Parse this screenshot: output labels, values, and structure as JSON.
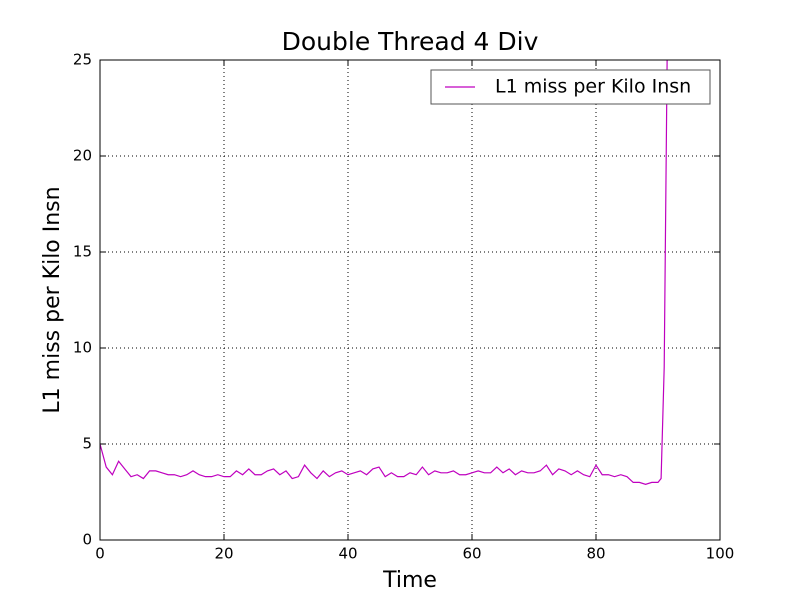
{
  "chart_data": {
    "type": "line",
    "title": "Double Thread 4 Div",
    "xlabel": "Time",
    "ylabel": "L1 miss per Kilo Insn",
    "x": [
      0,
      1,
      2,
      3,
      4,
      5,
      6,
      7,
      8,
      9,
      10,
      11,
      12,
      13,
      14,
      15,
      16,
      17,
      18,
      19,
      20,
      21,
      22,
      23,
      24,
      25,
      26,
      27,
      28,
      29,
      30,
      31,
      32,
      33,
      34,
      35,
      36,
      37,
      38,
      39,
      40,
      41,
      42,
      43,
      44,
      45,
      46,
      47,
      48,
      49,
      50,
      51,
      52,
      53,
      54,
      55,
      56,
      57,
      58,
      59,
      60,
      61,
      62,
      63,
      64,
      65,
      66,
      67,
      68,
      69,
      70,
      71,
      72,
      73,
      74,
      75,
      76,
      77,
      78,
      79,
      80,
      81,
      82,
      83,
      84,
      85,
      86,
      87,
      88,
      89,
      90,
      90.5,
      91,
      91.5
    ],
    "series": [
      {
        "name": "L1 miss per Kilo Insn",
        "color": "#bf00bf",
        "values": [
          5.0,
          3.8,
          3.4,
          4.1,
          3.7,
          3.3,
          3.4,
          3.2,
          3.6,
          3.6,
          3.5,
          3.4,
          3.4,
          3.3,
          3.4,
          3.6,
          3.4,
          3.3,
          3.3,
          3.4,
          3.3,
          3.3,
          3.6,
          3.4,
          3.7,
          3.4,
          3.4,
          3.6,
          3.7,
          3.4,
          3.6,
          3.2,
          3.3,
          3.9,
          3.5,
          3.2,
          3.6,
          3.3,
          3.5,
          3.6,
          3.4,
          3.5,
          3.6,
          3.4,
          3.7,
          3.8,
          3.3,
          3.5,
          3.3,
          3.3,
          3.5,
          3.4,
          3.8,
          3.4,
          3.6,
          3.5,
          3.5,
          3.6,
          3.4,
          3.4,
          3.5,
          3.6,
          3.5,
          3.5,
          3.8,
          3.5,
          3.7,
          3.4,
          3.6,
          3.5,
          3.5,
          3.6,
          3.9,
          3.4,
          3.7,
          3.6,
          3.4,
          3.6,
          3.4,
          3.3,
          3.9,
          3.4,
          3.4,
          3.3,
          3.4,
          3.3,
          3.0,
          3.0,
          2.9,
          3.0,
          3.0,
          3.2,
          9.0,
          26
        ]
      }
    ],
    "xlim": [
      0,
      100
    ],
    "ylim": [
      0,
      25
    ],
    "xticks": [
      0,
      20,
      40,
      60,
      80,
      100
    ],
    "yticks": [
      0,
      5,
      10,
      15,
      20,
      25
    ],
    "grid": true,
    "legend": "upper right"
  }
}
